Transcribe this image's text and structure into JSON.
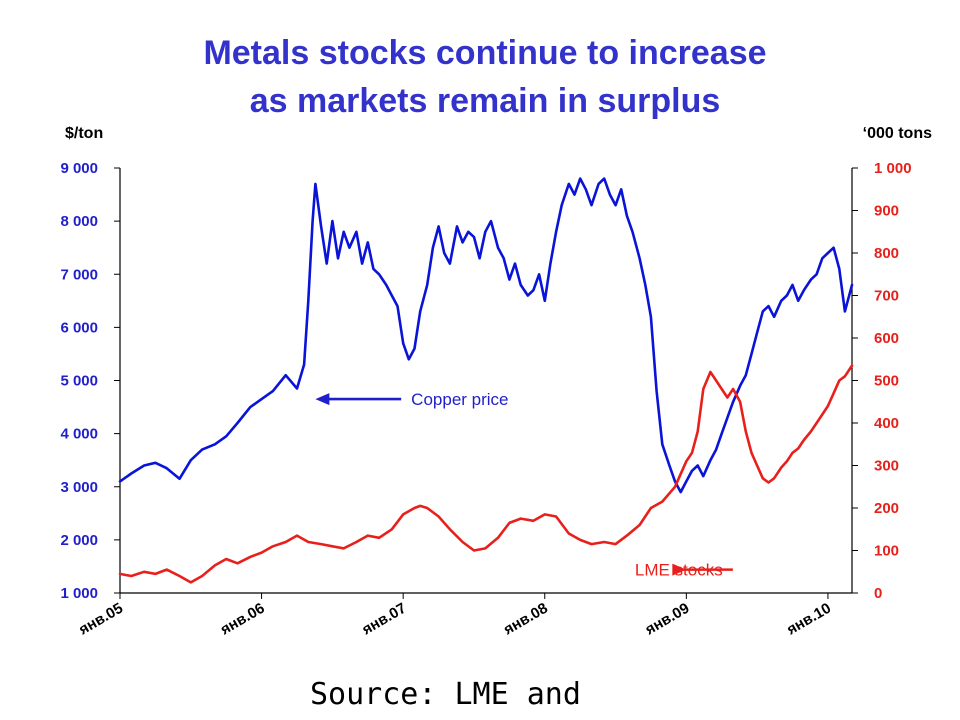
{
  "chart_data": {
    "type": "line",
    "title": [
      "Metals stocks continue to increase",
      "as markets remain in surplus"
    ],
    "source": "Source: LME and",
    "y_left": {
      "label": "$/ton",
      "ylim": [
        1000,
        9000
      ],
      "ticks": [
        "1 000",
        "2 000",
        "3 000",
        "4 000",
        "5 000",
        "6 000",
        "7 000",
        "8 000",
        "9 000"
      ],
      "tick_values": [
        1000,
        2000,
        3000,
        4000,
        5000,
        6000,
        7000,
        8000,
        9000
      ]
    },
    "y_right": {
      "label": "‘000 tons",
      "ylim": [
        0,
        1000
      ],
      "ticks": [
        "0",
        "100",
        "200",
        "300",
        "400",
        "500",
        "600",
        "700",
        "800",
        "900",
        "1 000"
      ],
      "tick_values": [
        0,
        100,
        200,
        300,
        400,
        500,
        600,
        700,
        800,
        900,
        1000
      ]
    },
    "x_axis": {
      "ticks": [
        "янв.05",
        "янв.06",
        "янв.07",
        "янв.08",
        "янв.09",
        "янв.10"
      ],
      "tick_values": [
        2005.0,
        2006.0,
        2007.0,
        2008.0,
        2009.0,
        2010.0
      ],
      "xlim": [
        2005.0,
        2010.17
      ]
    },
    "grid": false,
    "series": [
      {
        "name": "Copper price",
        "axis": "left",
        "color": "#0a14d8",
        "x": [
          2005.0,
          2005.08,
          2005.17,
          2005.25,
          2005.33,
          2005.42,
          2005.5,
          2005.58,
          2005.67,
          2005.75,
          2005.83,
          2005.92,
          2006.0,
          2006.08,
          2006.17,
          2006.25,
          2006.3,
          2006.33,
          2006.36,
          2006.38,
          2006.42,
          2006.46,
          2006.5,
          2006.54,
          2006.58,
          2006.62,
          2006.67,
          2006.71,
          2006.75,
          2006.79,
          2006.83,
          2006.88,
          2006.92,
          2006.96,
          2007.0,
          2007.04,
          2007.08,
          2007.12,
          2007.17,
          2007.21,
          2007.25,
          2007.29,
          2007.33,
          2007.38,
          2007.42,
          2007.46,
          2007.5,
          2007.54,
          2007.58,
          2007.62,
          2007.67,
          2007.71,
          2007.75,
          2007.79,
          2007.83,
          2007.88,
          2007.92,
          2007.96,
          2008.0,
          2008.04,
          2008.08,
          2008.12,
          2008.17,
          2008.21,
          2008.25,
          2008.29,
          2008.33,
          2008.38,
          2008.42,
          2008.46,
          2008.5,
          2008.54,
          2008.58,
          2008.62,
          2008.67,
          2008.71,
          2008.75,
          2008.79,
          2008.83,
          2008.88,
          2008.92,
          2008.96,
          2009.0,
          2009.04,
          2009.08,
          2009.12,
          2009.17,
          2009.21,
          2009.25,
          2009.29,
          2009.33,
          2009.38,
          2009.42,
          2009.46,
          2009.5,
          2009.54,
          2009.58,
          2009.62,
          2009.67,
          2009.71,
          2009.75,
          2009.79,
          2009.83,
          2009.88,
          2009.92,
          2009.96,
          2010.0,
          2010.04,
          2010.08,
          2010.12,
          2010.17
        ],
        "values": [
          3100,
          3250,
          3400,
          3450,
          3350,
          3150,
          3500,
          3700,
          3800,
          3950,
          4200,
          4500,
          4650,
          4800,
          5100,
          4850,
          5300,
          6500,
          8000,
          8700,
          7900,
          7200,
          8000,
          7300,
          7800,
          7500,
          7800,
          7200,
          7600,
          7100,
          7000,
          6800,
          6600,
          6400,
          5700,
          5400,
          5600,
          6300,
          6800,
          7500,
          7900,
          7400,
          7200,
          7900,
          7600,
          7800,
          7700,
          7300,
          7800,
          8000,
          7500,
          7300,
          6900,
          7200,
          6800,
          6600,
          6700,
          7000,
          6500,
          7200,
          7800,
          8300,
          8700,
          8500,
          8800,
          8600,
          8300,
          8700,
          8800,
          8500,
          8300,
          8600,
          8100,
          7800,
          7300,
          6800,
          6200,
          4800,
          3800,
          3400,
          3100,
          2900,
          3100,
          3300,
          3400,
          3200,
          3500,
          3700,
          4000,
          4300,
          4600,
          4900,
          5100,
          5500,
          5900,
          6300,
          6400,
          6200,
          6500,
          6600,
          6800,
          6500,
          6700,
          6900,
          7000,
          7300,
          7400,
          7500,
          7100,
          6300,
          6800
        ]
      },
      {
        "name": "LME stocks",
        "axis": "right",
        "color": "#e8201c",
        "x": [
          2005.0,
          2005.08,
          2005.17,
          2005.25,
          2005.33,
          2005.42,
          2005.5,
          2005.58,
          2005.67,
          2005.75,
          2005.83,
          2005.92,
          2006.0,
          2006.08,
          2006.17,
          2006.25,
          2006.33,
          2006.42,
          2006.5,
          2006.58,
          2006.67,
          2006.75,
          2006.83,
          2006.92,
          2007.0,
          2007.08,
          2007.12,
          2007.17,
          2007.25,
          2007.33,
          2007.42,
          2007.5,
          2007.58,
          2007.67,
          2007.75,
          2007.83,
          2007.92,
          2008.0,
          2008.08,
          2008.17,
          2008.25,
          2008.33,
          2008.42,
          2008.5,
          2008.58,
          2008.67,
          2008.75,
          2008.83,
          2008.92,
          2009.0,
          2009.04,
          2009.08,
          2009.12,
          2009.17,
          2009.21,
          2009.25,
          2009.29,
          2009.33,
          2009.38,
          2009.42,
          2009.46,
          2009.5,
          2009.54,
          2009.58,
          2009.62,
          2009.67,
          2009.71,
          2009.75,
          2009.79,
          2009.83,
          2009.88,
          2009.92,
          2009.96,
          2010.0,
          2010.04,
          2010.08,
          2010.12,
          2010.17
        ],
        "values": [
          45,
          40,
          50,
          45,
          55,
          40,
          25,
          40,
          65,
          80,
          70,
          85,
          95,
          110,
          120,
          135,
          120,
          115,
          110,
          105,
          120,
          135,
          130,
          150,
          185,
          200,
          205,
          200,
          180,
          150,
          120,
          100,
          105,
          130,
          165,
          175,
          170,
          185,
          180,
          140,
          125,
          115,
          120,
          115,
          135,
          160,
          200,
          215,
          250,
          310,
          330,
          380,
          480,
          520,
          500,
          480,
          460,
          480,
          450,
          380,
          330,
          300,
          270,
          260,
          270,
          295,
          310,
          330,
          340,
          360,
          380,
          400,
          420,
          440,
          470,
          500,
          510,
          535
        ]
      }
    ],
    "annotations": [
      {
        "text": "Copper price",
        "color": "#1f1fcc",
        "x": 2007.0,
        "y_left": 4650,
        "arrow_to_x": 2006.38
      },
      {
        "text": "LME stocks",
        "color": "#e8201c",
        "x": 2008.58,
        "y_right": 55,
        "arrow_to_x": 2009.0
      }
    ]
  }
}
